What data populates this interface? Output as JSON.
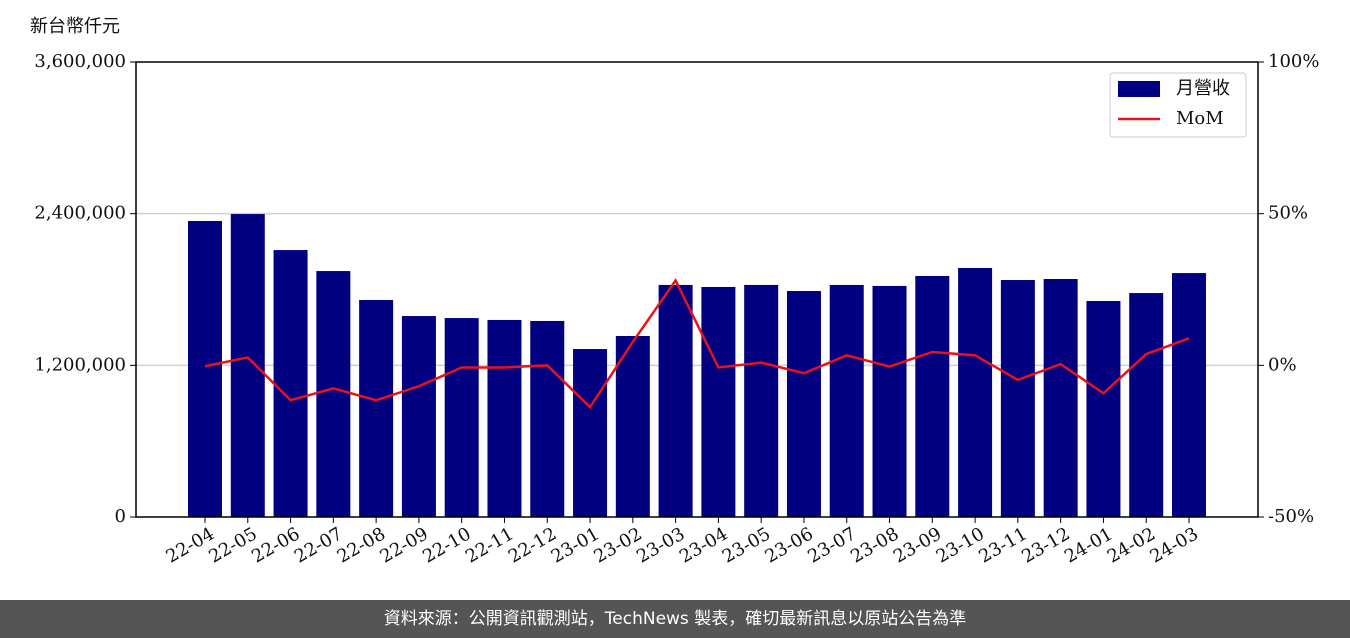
{
  "chart_data": {
    "type": "bar",
    "y_label": "新台幣仟元",
    "categories": [
      "22-04",
      "22-05",
      "22-06",
      "22-07",
      "22-08",
      "22-09",
      "22-10",
      "22-11",
      "22-12",
      "23-01",
      "23-02",
      "23-03",
      "23-04",
      "23-05",
      "23-06",
      "23-07",
      "23-08",
      "23-09",
      "23-10",
      "23-11",
      "23-12",
      "24-01",
      "24-02",
      "24-03"
    ],
    "series": [
      {
        "name": "月營收",
        "type": "bar",
        "color": "#000080",
        "values": [
          2342000,
          2397000,
          2112000,
          1946000,
          1717000,
          1590000,
          1574000,
          1559000,
          1551000,
          1329000,
          1432000,
          1836000,
          1820000,
          1836000,
          1788000,
          1836000,
          1828000,
          1907000,
          1970000,
          1875000,
          1883000,
          1709000,
          1772000,
          1930000
        ]
      },
      {
        "name": "MoM",
        "type": "line",
        "axis": "y2",
        "color": "#e8121a",
        "values": [
          -0.3,
          2.6,
          -11.5,
          -7.6,
          -11.5,
          -6.9,
          -0.7,
          -0.7,
          0,
          -13.8,
          7.7,
          28,
          -0.7,
          0.9,
          -2.6,
          3.3,
          -0.4,
          4.4,
          3.3,
          -4.8,
          0.4,
          -9.2,
          3.7,
          8.9
        ]
      }
    ],
    "ylim": [
      0,
      3600000
    ],
    "yticks": [
      0,
      {
        "value": 1200000,
        "label": "1,200,000"
      },
      {
        "value": 2400000,
        "label": "2,400,000"
      },
      {
        "value": 3600000,
        "label": "3,600,000"
      }
    ],
    "y2lim": [
      -50,
      100
    ],
    "y2ticks": [
      {
        "value": -50,
        "label": "-50%"
      },
      {
        "value": 0,
        "label": "0%"
      },
      {
        "value": 50,
        "label": "50%"
      },
      {
        "value": 100,
        "label": "100%"
      }
    ],
    "grid": true,
    "legend": "upper right"
  },
  "footer": "資料來源：公開資訊觀測站，TechNews 製表，確切最新訊息以原站公告為準"
}
